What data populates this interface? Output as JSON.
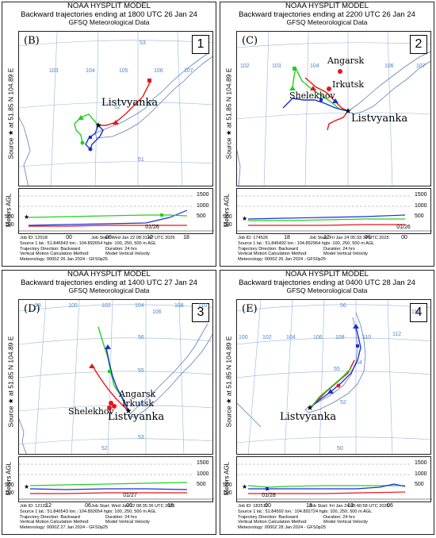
{
  "panels": [
    {
      "header": {
        "line1": "NOAA HYSPLIT MODEL",
        "line2": "Backward trajectories ending at 1800 UTC 26 Jan 24",
        "line3": "GFSQ Meteorological Data"
      },
      "sidebar": "Source ★ at 51.85 N 104.89 E",
      "label": "(B)",
      "number": "1",
      "cities": [
        "Listvyanka"
      ],
      "grid_numbers": [
        "53",
        "103",
        "104",
        "105",
        "106",
        "107",
        "52",
        "51"
      ],
      "height_labels": [
        "1500",
        "1000",
        "500",
        "500",
        "100"
      ],
      "time_ticks": [
        "00",
        "06",
        "12",
        "18"
      ],
      "date_label": "01/26",
      "info": {
        "job": "Job ID: 12018",
        "job_start": "Job Start: Wed Jan 22 08:31:47 UTC 2025",
        "source": "Source 1 lat.: 51.846543  lon.: 104.892654  hgts: 100, 250, 500 m AGL",
        "direction": "Trajectory Direction: Backward",
        "duration": "Duration: 24 hrs",
        "vertical": "Vertical Motion Calculation Method:",
        "vertical_val": "Model Vertical Velocity",
        "meteo": "Meteorology: 0000Z 26 Jan 2024 - GFS0p25"
      }
    },
    {
      "header": {
        "line1": "NOAA HYSPLIT MODEL",
        "line2": "Backward trajectories ending at 2200 UTC 26 Jan 24",
        "line3": "GFSQ Meteorological Data"
      },
      "sidebar": "Source ★ at 51.85 N 104.89 E",
      "label": "(C)",
      "number": "2",
      "cities": [
        "Angarsk",
        "Irkutsk",
        "Shelekhov",
        "Listvyanka"
      ],
      "grid_numbers": [
        "102",
        "103",
        "104",
        "106",
        "107"
      ],
      "height_labels": [
        "1500",
        "1000",
        "500",
        "500",
        "100"
      ],
      "time_ticks": [
        "18",
        "12",
        "06",
        "00"
      ],
      "date_label": "01/26",
      "info": {
        "job": "Job ID: 174526",
        "job_start": "Job Start: Fri Jan 24 05:33:14 UTC 2025",
        "source": "Source 1 lat.: 51.846492  lon.: 104.892964  hgts: 100, 250, 500 m AGL",
        "direction": "Trajectory Direction: Backward",
        "duration": "Duration: 24 hrs",
        "vertical": "Vertical Motion Calculation Method:",
        "vertical_val": "Model Vertical Velocity",
        "meteo": "Meteorology: 0000Z 26 Jan 2024 - GFS0p25"
      }
    },
    {
      "header": {
        "line1": "NOAA HYSPLIT MODEL",
        "line2": "Backward trajectories ending at 1400 UTC 27 Jan 24",
        "line3": "GFSQ Meteorological Data"
      },
      "sidebar": "Source ★ at 51.85 N 104.89 E",
      "label": "(D)",
      "number": "3",
      "cities": [
        "Angarsk",
        "Irkutsk",
        "Shelekhov",
        "Listvyanka"
      ],
      "grid_numbers": [
        "98",
        "100",
        "102",
        "104",
        "106",
        "108",
        "110",
        "56",
        "55",
        "54",
        "53",
        "52"
      ],
      "height_labels": [
        "1500",
        "1000",
        "500",
        "500",
        "100"
      ],
      "time_ticks": [
        "12",
        "06",
        "00",
        "18"
      ],
      "date_label": "01/27",
      "info": {
        "job": "Job ID: 12132",
        "job_start": "Job Start: Wed Jan 22 08:35:36 UTC 2025",
        "source": "Source 1 lat.: 51.846543  lon.: 104.892654  hgts: 100, 250, 500 m AGL",
        "direction": "Trajectory Direction: Backward",
        "duration": "Duration: 24 hrs",
        "vertical": "Vertical Motion Calculation Method:",
        "vertical_val": "Model Vertical Velocity",
        "meteo": "Meteorology: 0000Z 27 Jan 2024 - GFS0p25"
      }
    },
    {
      "header": {
        "line1": "NOAA HYSPLIT MODEL",
        "line2": "Backward trajectories ending at 0400 UTC 28 Jan 24",
        "line3": "GFSQ Meteorological Data"
      },
      "sidebar": "Source ★ at 51.85 N 104.89 E",
      "label": "(E)",
      "number": "4",
      "cities": [
        "Listvyanka"
      ],
      "grid_numbers": [
        "100",
        "102",
        "104",
        "106",
        "108",
        "110",
        "112",
        "114",
        "56",
        "55",
        "54",
        "52",
        "50"
      ],
      "height_labels": [
        "1500",
        "1000",
        "500",
        "500",
        "100"
      ],
      "time_ticks": [
        "00",
        "18",
        "12",
        "06"
      ],
      "date_label": "01/28",
      "info": {
        "job": "Job ID: 182511",
        "job_start": "Job Start: Fri Jan 24 08:40:58 UTC 2025",
        "source": "Source 1 lat.: 51.84592  lon.: 104.892724  hgts: 100, 250, 500 m AGL",
        "direction": "Trajectory Direction: Backward",
        "duration": "Duration: 24 hrs",
        "vertical": "Vertical Motion Calculation Method:",
        "vertical_val": "Model Vertical Velocity",
        "meteo": "Meteorology: 0000Z 28 Jan 2024 - GFS0p25"
      }
    }
  ],
  "colors": {
    "red": "#e8141c",
    "blue": "#1a2fd6",
    "green": "#22d020",
    "coast": "#5b7fbf",
    "grid": "#9ab4dc"
  },
  "legend_series": [
    "100 m",
    "250 m",
    "500 m"
  ]
}
